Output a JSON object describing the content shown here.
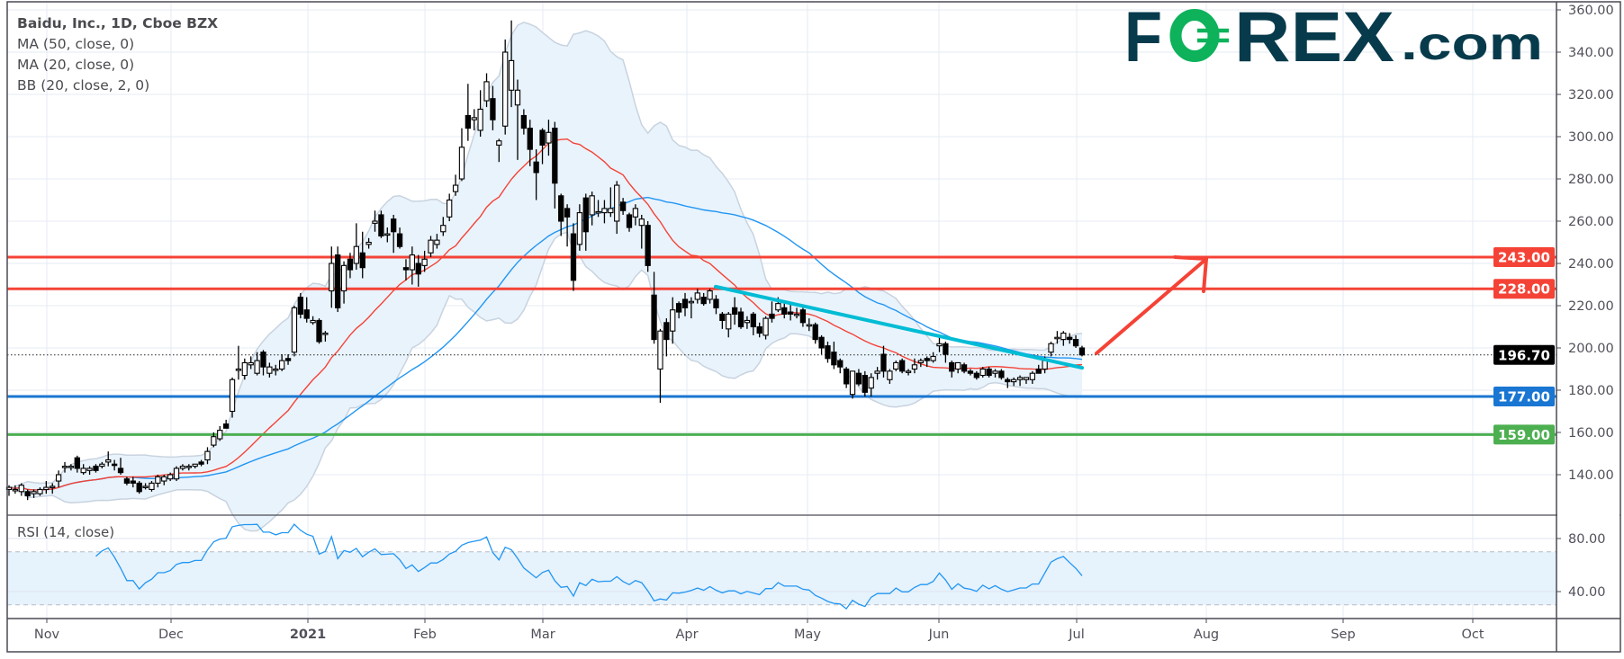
{
  "header": {
    "title": "Baidu, Inc., 1D, Cboe BZX",
    "indicators": [
      "MA (50, close, 0)",
      "MA (20, close, 0)",
      "BB (20, close, 2, 0)"
    ]
  },
  "logo": {
    "text": "FOREX.com",
    "brand_color": "#073b4c",
    "accent_color": "#0db25b"
  },
  "price_axis": {
    "ticks": [
      "140.00",
      "160.00",
      "180.00",
      "200.00",
      "220.00",
      "240.00",
      "260.00",
      "280.00",
      "300.00",
      "320.00",
      "340.00",
      "360.00"
    ]
  },
  "rsi": {
    "label": "RSI (14, close)",
    "ticks": [
      "40.00",
      "80.00"
    ],
    "band": [
      30,
      70
    ],
    "color": "#2196f3"
  },
  "time_axis": {
    "labels": [
      "Nov",
      "Dec",
      "2021",
      "Feb",
      "Mar",
      "Apr",
      "May",
      "Jun",
      "Jul",
      "Aug",
      "Sep",
      "Oct"
    ]
  },
  "levels": [
    {
      "price": 243,
      "label": "243.00",
      "color": "#f44336"
    },
    {
      "price": 228,
      "label": "228.00",
      "color": "#f44336"
    },
    {
      "price": 177,
      "label": "177.00",
      "color": "#1976d2"
    },
    {
      "price": 159,
      "label": "159.00",
      "color": "#4caf50"
    }
  ],
  "last_price": {
    "value": 196.7,
    "label": "196.70",
    "color": "#000000"
  },
  "trendline": {
    "from_price": 229,
    "to_price": 190.6,
    "color": "#00bcd4"
  },
  "arrow": {
    "color": "#f44336",
    "direction": "up-right"
  },
  "chart_data": {
    "type": "candlestick",
    "interval": "1D",
    "ylim": [
      124,
      362
    ],
    "colors": {
      "ma50": "#2196f3",
      "ma20": "#f44336",
      "bb_fill": "#e9f3fc",
      "bb_line": "#c8d3df",
      "up": "#ffffff",
      "down": "#000000"
    },
    "ohlc": [
      [
        133,
        135,
        130,
        134
      ],
      [
        133,
        135,
        131,
        133
      ],
      [
        132,
        136,
        130,
        135
      ],
      [
        132,
        133,
        128,
        130
      ],
      [
        131,
        133,
        129,
        132
      ],
      [
        131,
        134,
        130,
        133
      ],
      [
        133,
        137,
        131,
        134
      ],
      [
        134,
        136,
        131,
        134.5
      ],
      [
        137,
        142,
        134,
        140
      ],
      [
        144,
        146,
        141,
        144
      ],
      [
        144,
        145,
        142,
        144
      ],
      [
        148,
        149,
        141,
        143
      ],
      [
        141,
        145,
        140,
        143
      ],
      [
        142,
        144,
        140,
        143
      ],
      [
        144,
        145,
        141,
        142
      ],
      [
        144,
        146,
        143,
        145
      ],
      [
        146,
        151,
        144,
        147
      ],
      [
        145,
        147,
        142,
        144.5
      ],
      [
        143,
        148,
        140,
        141
      ],
      [
        138,
        139,
        135,
        136
      ],
      [
        137,
        139,
        134,
        136
      ],
      [
        136,
        137,
        131,
        132
      ],
      [
        134,
        136,
        133,
        134.5
      ],
      [
        133,
        137,
        132,
        136
      ],
      [
        136,
        140,
        134,
        139
      ],
      [
        137,
        140,
        135,
        139
      ],
      [
        138,
        141,
        137,
        140
      ],
      [
        138,
        144,
        137,
        143
      ],
      [
        143,
        145,
        142,
        144
      ],
      [
        144,
        145,
        142,
        144
      ],
      [
        144,
        145,
        143,
        145
      ],
      [
        146,
        147,
        144,
        145
      ],
      [
        147,
        153,
        145,
        151
      ],
      [
        154,
        160,
        153,
        158
      ],
      [
        157,
        163,
        156,
        161
      ],
      [
        164,
        166,
        162,
        162
      ],
      [
        170,
        186,
        167,
        185
      ],
      [
        190,
        201,
        185,
        190
      ],
      [
        187,
        195,
        185,
        193
      ],
      [
        192,
        196,
        190,
        193
      ],
      [
        188,
        198,
        187,
        194
      ],
      [
        198,
        199,
        187,
        191
      ],
      [
        188,
        193,
        186,
        191
      ],
      [
        190,
        192,
        187,
        190
      ],
      [
        190,
        197,
        189,
        194
      ],
      [
        195,
        197,
        192,
        194
      ],
      [
        198,
        220,
        196,
        219
      ],
      [
        224,
        226,
        214,
        216
      ],
      [
        218,
        224,
        212,
        214
      ],
      [
        212,
        215,
        211,
        213
      ],
      [
        213,
        214,
        202,
        203
      ],
      [
        207,
        208,
        203,
        207
      ],
      [
        227,
        248,
        219,
        240
      ],
      [
        244,
        248,
        217,
        219
      ],
      [
        227,
        241,
        221,
        239
      ],
      [
        242,
        245,
        233,
        237
      ],
      [
        240,
        259,
        237,
        248
      ],
      [
        245,
        255,
        233,
        238
      ],
      [
        249,
        252,
        247,
        250
      ],
      [
        259,
        265,
        255,
        260
      ],
      [
        263,
        265,
        252,
        253
      ],
      [
        254,
        257,
        250,
        254
      ],
      [
        261,
        263,
        245,
        255
      ],
      [
        254,
        257,
        247,
        248
      ],
      [
        238,
        242,
        232,
        237
      ],
      [
        237,
        248,
        230,
        244
      ],
      [
        240,
        244,
        229,
        235
      ],
      [
        239,
        246,
        236,
        242
      ],
      [
        245,
        253,
        243,
        251
      ],
      [
        249,
        254,
        247,
        251
      ],
      [
        255,
        262,
        253,
        258
      ],
      [
        262,
        273,
        260,
        270
      ],
      [
        274,
        282,
        272,
        277
      ],
      [
        280,
        304,
        279,
        295
      ],
      [
        310,
        325,
        298,
        304
      ],
      [
        308,
        313,
        303,
        309
      ],
      [
        303,
        322,
        300,
        313
      ],
      [
        317,
        330,
        314,
        326
      ],
      [
        318,
        324,
        303,
        308
      ],
      [
        296,
        299,
        288,
        298
      ],
      [
        305,
        346,
        301,
        340
      ],
      [
        322,
        355,
        314,
        336
      ],
      [
        315,
        327,
        289,
        322
      ],
      [
        310,
        313,
        301,
        304
      ],
      [
        304,
        308,
        286,
        294
      ],
      [
        288,
        294,
        270,
        283
      ],
      [
        303,
        304,
        287,
        296
      ],
      [
        297,
        308,
        291,
        302
      ],
      [
        304,
        307,
        266,
        278
      ],
      [
        272,
        273,
        253,
        260
      ],
      [
        266,
        268,
        248,
        262
      ],
      [
        254,
        259,
        227,
        232
      ],
      [
        249,
        268,
        246,
        264
      ],
      [
        271,
        273,
        246,
        255
      ],
      [
        263,
        274,
        258,
        272
      ],
      [
        264,
        270,
        262,
        264.5
      ],
      [
        264,
        270,
        259,
        266
      ],
      [
        264,
        276,
        262,
        266
      ],
      [
        260,
        279,
        254,
        277
      ],
      [
        269,
        271,
        263,
        265
      ],
      [
        263,
        264,
        255,
        257
      ],
      [
        262,
        268,
        258,
        266
      ],
      [
        258,
        263,
        247,
        261
      ],
      [
        258,
        260,
        236,
        239
      ],
      [
        225,
        236,
        202,
        204
      ],
      [
        190,
        209,
        174,
        208
      ],
      [
        212,
        214,
        196,
        204
      ],
      [
        208,
        224,
        202,
        218
      ],
      [
        221,
        222,
        214,
        217
      ],
      [
        223,
        226,
        215,
        219
      ],
      [
        222,
        224,
        214,
        222
      ],
      [
        223,
        228,
        221,
        226
      ],
      [
        224,
        226,
        220,
        221
      ],
      [
        223,
        228,
        221,
        227
      ],
      [
        223,
        225,
        216,
        219
      ],
      [
        216,
        217,
        209,
        213
      ],
      [
        209,
        217,
        205,
        216
      ],
      [
        219,
        224,
        211,
        216
      ],
      [
        217,
        219,
        209,
        210
      ],
      [
        212,
        215,
        209,
        213
      ],
      [
        216,
        217,
        206,
        210
      ],
      [
        210,
        212,
        205,
        207
      ],
      [
        206,
        215,
        204,
        214
      ],
      [
        216,
        222,
        212,
        214
      ],
      [
        218,
        224,
        217,
        221
      ],
      [
        219,
        221,
        214,
        216
      ],
      [
        217,
        221,
        213,
        216
      ],
      [
        216,
        219,
        214,
        216
      ],
      [
        218,
        219,
        210,
        212
      ],
      [
        211,
        214,
        208,
        211
      ],
      [
        211,
        212,
        202,
        204
      ],
      [
        205,
        206,
        197,
        200
      ],
      [
        201,
        203,
        193,
        195
      ],
      [
        198,
        203,
        190,
        192
      ],
      [
        194,
        195,
        188,
        191
      ],
      [
        190,
        191,
        181,
        183
      ],
      [
        178,
        189,
        176,
        189
      ],
      [
        188,
        190,
        182,
        183
      ],
      [
        187,
        189,
        177,
        179
      ],
      [
        181,
        188,
        177,
        186
      ],
      [
        188,
        191,
        185,
        189
      ],
      [
        197,
        201,
        186,
        189
      ],
      [
        185,
        190,
        183,
        189
      ],
      [
        190,
        194,
        189,
        193
      ],
      [
        194,
        195,
        188,
        189
      ],
      [
        189,
        190,
        187,
        189
      ],
      [
        190,
        195,
        188,
        192
      ],
      [
        193,
        195,
        191,
        194
      ],
      [
        195,
        196,
        191,
        194
      ],
      [
        194,
        198,
        193,
        196
      ],
      [
        201,
        205,
        198,
        202
      ],
      [
        202,
        203,
        193,
        197
      ],
      [
        193,
        194,
        186,
        189
      ],
      [
        190,
        193,
        188,
        193
      ],
      [
        192,
        193,
        188,
        189
      ],
      [
        189,
        190,
        187,
        188
      ],
      [
        188,
        189,
        185,
        186
      ],
      [
        187,
        191,
        186,
        190
      ],
      [
        190,
        191,
        186,
        187
      ],
      [
        188,
        190,
        186,
        189
      ],
      [
        189,
        190,
        185,
        186
      ],
      [
        185,
        186,
        181,
        184
      ],
      [
        184,
        186,
        182,
        185
      ],
      [
        185,
        187,
        182,
        186
      ],
      [
        185,
        186,
        183,
        186
      ],
      [
        185,
        189,
        183,
        188
      ],
      [
        190,
        192,
        188,
        188
      ],
      [
        190,
        196,
        188,
        194
      ],
      [
        198,
        203,
        196,
        202
      ],
      [
        205,
        208,
        202,
        205
      ],
      [
        204,
        208,
        201,
        207
      ],
      [
        205,
        207,
        202,
        204
      ],
      [
        204,
        206,
        200,
        201
      ],
      [
        200,
        201,
        196,
        196.7
      ]
    ]
  }
}
